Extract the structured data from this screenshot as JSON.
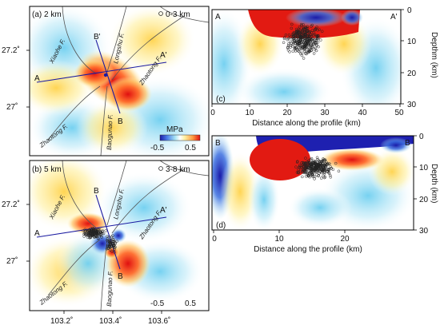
{
  "panels": {
    "a": {
      "label": "(a) 2 km",
      "depth_range": "0-3 km",
      "faults": [
        "Xiaohe F.",
        "Longshu F.",
        "Zhaotong F.",
        "Zhaotong F.",
        "Baogunao F."
      ],
      "profile_points": [
        "A",
        "A'",
        "B'",
        "B"
      ]
    },
    "b": {
      "label": "(b) 5 km",
      "depth_range": "3-8 km",
      "faults": [
        "Xiaohe F.",
        "Longshu F.",
        "Zhaotong F.",
        "Zhaotong F.",
        "Baogunao F."
      ],
      "profile_points": [
        "A",
        "A'",
        "B",
        "B"
      ]
    },
    "c": {
      "label": "(c)",
      "end_left": "A",
      "end_right": "A'",
      "xlabel": "Distance along the profile (km)",
      "ylabel": "Depthm (km)",
      "x_ticks": [
        "10",
        "20",
        "30",
        "40",
        "50"
      ],
      "x_zero": "0",
      "y_ticks": [
        "0",
        "10",
        "20",
        "30"
      ]
    },
    "d": {
      "label": "(d)",
      "end_left": "B",
      "end_right": "B",
      "xlabel": "Distance along the profile (km)",
      "ylabel": "Depth (km)",
      "x_ticks": [
        "0",
        "10",
        "20"
      ],
      "y_ticks": [
        "0",
        "10",
        "20",
        "30"
      ]
    }
  },
  "map_axes": {
    "lat_ticks": [
      "27.2˚",
      "27˚",
      "27.2˚",
      "27˚"
    ],
    "lon_ticks": [
      "103.2˚",
      "103.4˚",
      "103.6˚"
    ]
  },
  "colorbar": {
    "unit": "MPa",
    "min_label": "-0.5",
    "max_label": "0.5",
    "min_value": -0.5,
    "max_value": 0.5,
    "colors": [
      "#1a1aa8",
      "#4a7ee8",
      "#a8e4f4",
      "#ffffff",
      "#fff0a0",
      "#ff9a40",
      "#e01010"
    ]
  },
  "legend_b": {
    "min_label": "-0.5",
    "max_label": "0.5"
  },
  "colors": {
    "profile_line": "#1a1aa0",
    "fault_line": "#555555",
    "hypocenter": "#222222"
  }
}
